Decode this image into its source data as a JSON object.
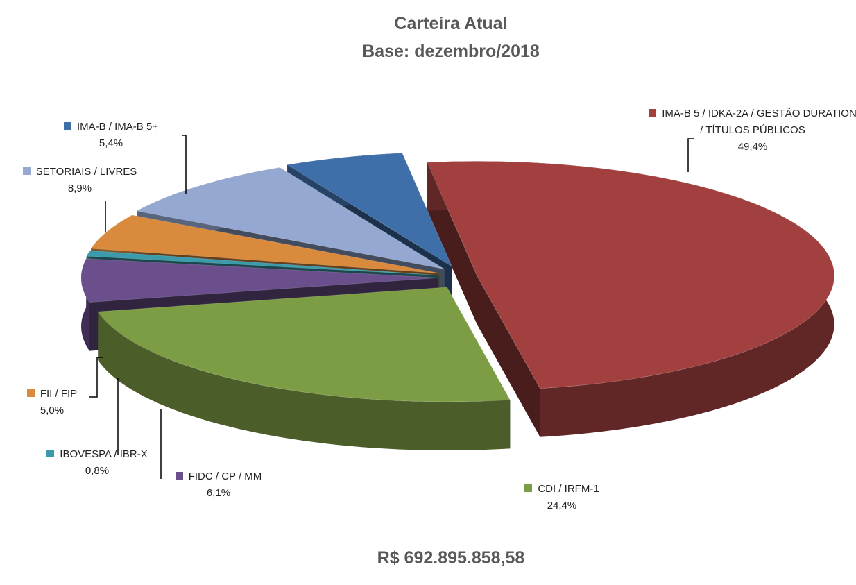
{
  "chart_data": {
    "type": "pie",
    "title": "Carteira Atual",
    "subtitle": "Base: dezembro/2018",
    "footer": "R$ 692.895.858,58",
    "categories": [
      "IMA-B 5 / IDKA-2A / GESTÃO DURATION / TÍTULOS PÚBLICOS",
      "CDI / IRFM-1",
      "FIDC / CP / MM",
      "IBOVESPA / IBR-X",
      "FII / FIP",
      "SETORIAIS / LIVRES",
      "IMA-B / IMA-B 5+"
    ],
    "values": [
      49.4,
      24.4,
      6.1,
      0.8,
      5.0,
      8.9,
      5.4
    ],
    "value_labels": [
      "49,4%",
      "24,4%",
      "6,1%",
      "0,8%",
      "5,0%",
      "8,9%",
      "5,4%"
    ],
    "colors": [
      "#a2403f",
      "#7d9d45",
      "#6a4f8c",
      "#3b9bab",
      "#d98a3c",
      "#95a8d1",
      "#3f6fa9"
    ]
  }
}
